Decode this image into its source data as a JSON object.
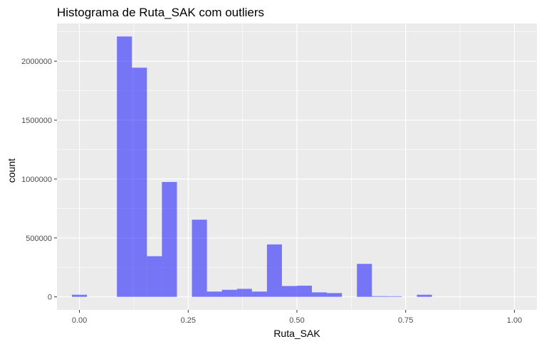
{
  "chart_data": {
    "type": "bar",
    "title": "Histograma de Ruta_SAK com outliers",
    "xlabel": "Ruta_SAK",
    "ylabel": "count",
    "bin_width": 0.0345,
    "bin_centers": [
      0.0,
      0.0345,
      0.069,
      0.1034,
      0.1379,
      0.1724,
      0.2069,
      0.2414,
      0.2759,
      0.3103,
      0.3448,
      0.3793,
      0.4138,
      0.4483,
      0.4828,
      0.5172,
      0.5517,
      0.5862,
      0.6207,
      0.6552,
      0.6897,
      0.7241,
      0.7586,
      0.7931,
      0.8276,
      0.8621,
      0.8966,
      0.931,
      0.9655,
      1.0
    ],
    "values": [
      18000,
      0,
      0,
      2210000,
      1945000,
      345000,
      975000,
      0,
      655000,
      45000,
      60000,
      68000,
      45000,
      445000,
      92000,
      95000,
      38000,
      32000,
      0,
      280000,
      6000,
      5000,
      0,
      18000,
      0,
      0,
      0,
      0,
      0,
      0
    ],
    "xlim": [
      -0.0517,
      1.0517
    ],
    "ylim": [
      -110500,
      2320500
    ],
    "x_ticks": [
      0.0,
      0.25,
      0.5,
      0.75,
      1.0
    ],
    "x_tick_labels": [
      "0.00",
      "0.25",
      "0.50",
      "0.75",
      "1.00"
    ],
    "y_ticks": [
      0,
      500000,
      1000000,
      1500000,
      2000000
    ],
    "y_tick_labels": [
      "0",
      "500000",
      "1000000",
      "1500000",
      "2000000"
    ],
    "bar_color": "#0000ff",
    "bar_opacity": 0.5,
    "panel_background": "#ebebeb",
    "grid": true,
    "legend": "none"
  }
}
